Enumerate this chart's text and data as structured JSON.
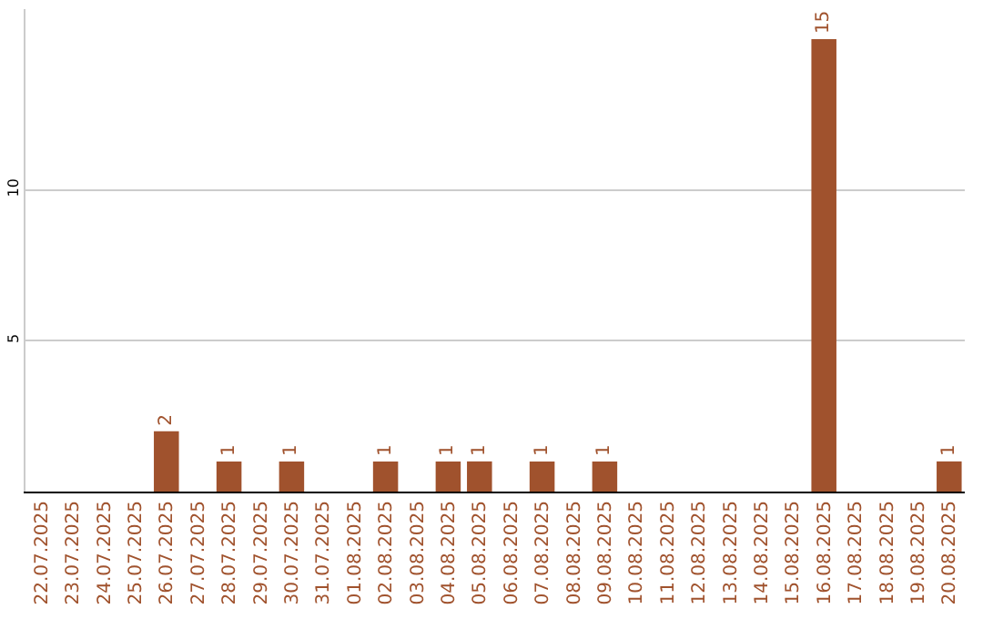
{
  "chart_data": {
    "type": "bar",
    "categories": [
      "22.07.2025",
      "23.07.2025",
      "24.07.2025",
      "25.07.2025",
      "26.07.2025",
      "27.07.2025",
      "28.07.2025",
      "29.07.2025",
      "30.07.2025",
      "31.07.2025",
      "01.08.2025",
      "02.08.2025",
      "03.08.2025",
      "04.08.2025",
      "05.08.2025",
      "06.08.2025",
      "07.08.2025",
      "08.08.2025",
      "09.08.2025",
      "10.08.2025",
      "11.08.2025",
      "12.08.2025",
      "13.08.2025",
      "14.08.2025",
      "15.08.2025",
      "16.08.2025",
      "17.08.2025",
      "18.08.2025",
      "19.08.2025",
      "20.08.2025"
    ],
    "values": [
      0,
      0,
      0,
      0,
      2,
      0,
      1,
      0,
      1,
      0,
      0,
      1,
      0,
      1,
      1,
      0,
      1,
      0,
      1,
      0,
      0,
      0,
      0,
      0,
      0,
      15,
      0,
      0,
      0,
      1
    ],
    "value_labels": [
      null,
      null,
      null,
      null,
      "2",
      null,
      "1",
      null,
      "1",
      null,
      null,
      "1",
      null,
      "1",
      "1",
      null,
      "1",
      null,
      "1",
      null,
      null,
      null,
      null,
      null,
      null,
      "15",
      null,
      null,
      null,
      "1"
    ],
    "color": "#a0522d",
    "ylim": [
      0,
      16
    ],
    "yticks": [
      5,
      10
    ],
    "grid": "y"
  }
}
